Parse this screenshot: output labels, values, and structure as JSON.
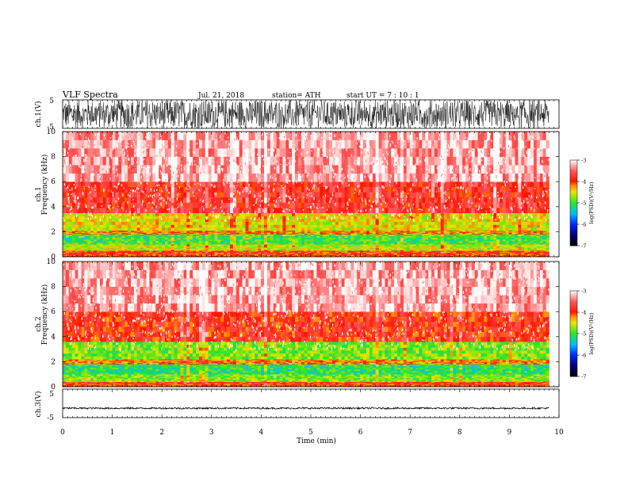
{
  "header": {
    "title": "VLF  Spectra",
    "date": "Jul.  21, 2018",
    "station": "station= ATH",
    "start": "start  UT  =    7  : 10 : 1"
  },
  "chart_data": [
    {
      "type": "line",
      "name": "ch1_waveform",
      "ylabel": "ch.1(V)",
      "ylim": [
        -5,
        5
      ],
      "yticks": [
        "5",
        "-5"
      ],
      "xlim": [
        0,
        10
      ],
      "x_extent_min": 9.8,
      "amplitude_V": 5,
      "note_visual": "dense noise waveform saturating the full ±5 V range"
    },
    {
      "type": "heatmap",
      "name": "ch1_spectrogram",
      "ylabel_line1": "ch.1",
      "ylabel_line2": "Frequency  (kHz)",
      "ylim": [
        0,
        10
      ],
      "yticks": [
        "0",
        "2",
        "4",
        "6",
        "8",
        "10"
      ],
      "xlim": [
        0,
        10
      ],
      "x_extent_min": 9.8,
      "frequency_bands_kHz": [
        {
          "from": 0.0,
          "to": 0.5,
          "level": -4.0
        },
        {
          "from": 0.5,
          "to": 1.0,
          "level": -4.6
        },
        {
          "from": 1.0,
          "to": 1.8,
          "level": -5.0
        },
        {
          "from": 1.8,
          "to": 2.1,
          "level": -4.2
        },
        {
          "from": 2.1,
          "to": 3.5,
          "level": -4.5
        },
        {
          "from": 3.5,
          "to": 6.0,
          "level": -3.8
        },
        {
          "from": 6.0,
          "to": 10.0,
          "level": -3.3
        }
      ],
      "colorbar": {
        "label": "log(PSD)(V²/Hz)",
        "range": [
          -7,
          -3
        ],
        "ticks": [
          "-3",
          "-4",
          "-5",
          "-6",
          "-7"
        ]
      }
    },
    {
      "type": "heatmap",
      "name": "ch2_spectrogram",
      "ylabel_line1": "ch.2",
      "ylabel_line2": "Frequency  (kHz)",
      "ylim": [
        0,
        10
      ],
      "yticks": [
        "0",
        "2",
        "4",
        "6",
        "8",
        "10"
      ],
      "xlim": [
        0,
        10
      ],
      "x_extent_min": 9.8,
      "frequency_bands_kHz": [
        {
          "from": 0.0,
          "to": 0.4,
          "level": -4.0
        },
        {
          "from": 0.4,
          "to": 1.0,
          "level": -4.8
        },
        {
          "from": 1.0,
          "to": 1.8,
          "level": -5.1
        },
        {
          "from": 1.8,
          "to": 2.2,
          "level": -4.2
        },
        {
          "from": 2.2,
          "to": 3.6,
          "level": -4.8
        },
        {
          "from": 3.6,
          "to": 6.0,
          "level": -3.9
        },
        {
          "from": 6.0,
          "to": 10.0,
          "level": -3.3
        }
      ],
      "colorbar": {
        "label": "log(PSD)(V²/Hz)",
        "range": [
          -7,
          -3
        ],
        "ticks": [
          "-3",
          "-4",
          "-5",
          "-6",
          "-7"
        ]
      }
    },
    {
      "type": "line",
      "name": "ch3_waveform",
      "ylabel": "ch.3(V)",
      "ylim": [
        -5,
        5
      ],
      "yticks": [
        "5",
        "-5"
      ],
      "xlim": [
        0,
        10
      ],
      "x_extent_min": 9.8,
      "baseline_V": -1.7,
      "amplitude_V": 0.3,
      "xlabel": "Time  (min)",
      "xticks": [
        "0",
        "1",
        "2",
        "3",
        "4",
        "5",
        "6",
        "7",
        "8",
        "9",
        "10"
      ]
    }
  ]
}
